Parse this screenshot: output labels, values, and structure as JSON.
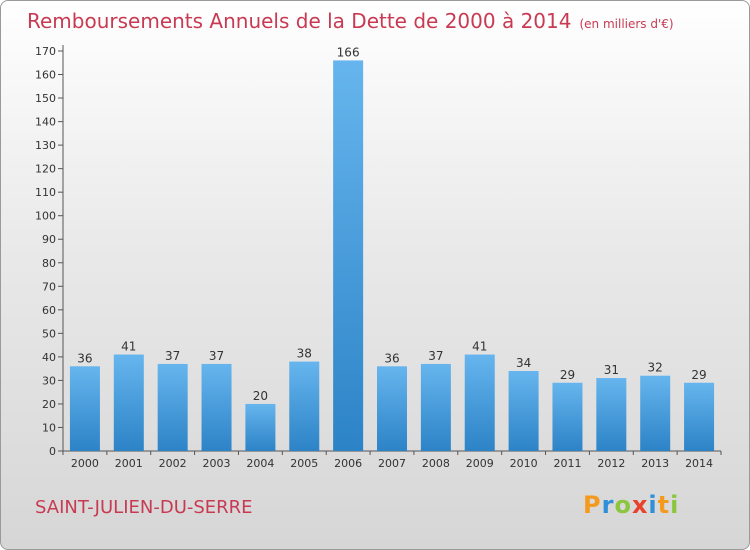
{
  "title": "Remboursements Annuels de la Dette de 2000 à 2014",
  "unit_note": "(en milliers d'€)",
  "commune": "SAINT-JULIEN-DU-SERRE",
  "logo": {
    "text": "Proxiti",
    "letters": [
      {
        "ch": "P",
        "color": "#f39a1f"
      },
      {
        "ch": "r",
        "color": "#2f8fd8"
      },
      {
        "ch": "o",
        "color": "#8cc63f"
      },
      {
        "ch": "x",
        "color": "#e8412c"
      },
      {
        "ch": "i",
        "color": "#2f8fd8"
      },
      {
        "ch": "t",
        "color": "#f39a1f"
      },
      {
        "ch": "i",
        "color": "#8cc63f"
      }
    ]
  },
  "colors": {
    "title": "#c83a52",
    "bar_top": "#66b5ee",
    "bar_bottom": "#2c83c6"
  },
  "chart_data": {
    "type": "bar",
    "title": "Remboursements Annuels de la Dette de 2000 à 2014",
    "categories": [
      "2000",
      "2001",
      "2002",
      "2003",
      "2004",
      "2005",
      "2006",
      "2007",
      "2008",
      "2009",
      "2010",
      "2011",
      "2012",
      "2013",
      "2014"
    ],
    "values": [
      36,
      41,
      37,
      37,
      20,
      38,
      166,
      36,
      37,
      41,
      34,
      29,
      31,
      32,
      29
    ],
    "ylim": [
      0,
      170
    ],
    "yticks": [
      0,
      10,
      20,
      30,
      40,
      50,
      60,
      70,
      80,
      90,
      100,
      110,
      120,
      130,
      140,
      150,
      160,
      170
    ],
    "grid": false,
    "xlabel": "",
    "ylabel": ""
  }
}
